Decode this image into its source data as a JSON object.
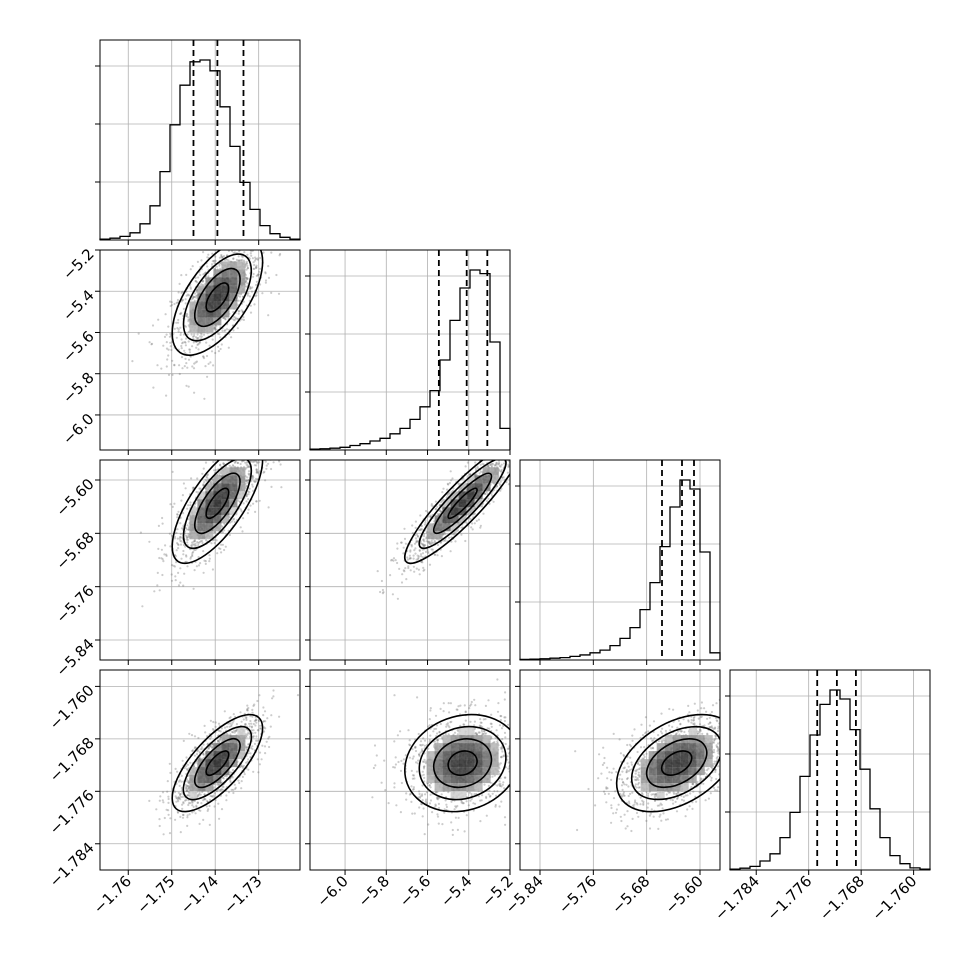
{
  "chart_data": {
    "type": "corner",
    "grid": true,
    "parameters": [
      {
        "range": [
          -1.7665,
          -1.7205
        ],
        "ticks": [
          -1.76,
          -1.75,
          -1.74,
          -1.73
        ],
        "tick_labels": [
          "−1.76",
          "−1.75",
          "−1.74",
          "−1.73"
        ],
        "quantiles": [
          -1.745,
          -1.7395,
          -1.7335
        ],
        "hist": [
          0.005,
          0.01,
          0.02,
          0.04,
          0.09,
          0.19,
          0.38,
          0.64,
          0.86,
          0.99,
          1.0,
          0.94,
          0.74,
          0.52,
          0.32,
          0.17,
          0.08,
          0.035,
          0.015,
          0.005
        ],
        "mean": -1.7395,
        "sd": 0.0052
      },
      {
        "range": [
          -6.17,
          -5.2
        ],
        "ticks": [
          -6.0,
          -5.8,
          -5.6,
          -5.4,
          -5.2
        ],
        "tick_labels": [
          "−6.0",
          "−5.8",
          "−5.6",
          "−5.4",
          "−5.2"
        ],
        "quantiles": [
          -5.545,
          -5.41,
          -5.31
        ],
        "hist": [
          0.005,
          0.007,
          0.01,
          0.015,
          0.025,
          0.035,
          0.05,
          0.065,
          0.09,
          0.12,
          0.17,
          0.24,
          0.33,
          0.5,
          0.72,
          0.9,
          1.0,
          0.98,
          0.6,
          0.12
        ],
        "mean": -5.43,
        "sd": 0.14
      },
      {
        "range": [
          -5.87,
          -5.57
        ],
        "ticks": [
          -5.84,
          -5.76,
          -5.68,
          -5.6
        ],
        "tick_labels": [
          "−5.84",
          "−5.76",
          "−5.68",
          "−5.60"
        ],
        "quantiles": [
          -5.657,
          -5.627,
          -5.609
        ],
        "hist": [
          0.003,
          0.005,
          0.007,
          0.01,
          0.013,
          0.02,
          0.028,
          0.04,
          0.055,
          0.08,
          0.12,
          0.18,
          0.28,
          0.43,
          0.63,
          0.85,
          1.0,
          0.95,
          0.6,
          0.04
        ],
        "mean": -5.635,
        "sd": 0.045
      },
      {
        "range": [
          -1.788,
          -1.7575
        ],
        "ticks": [
          -1.784,
          -1.776,
          -1.768,
          -1.76
        ],
        "tick_labels": [
          "−1.784",
          "−1.776",
          "−1.768",
          "−1.760"
        ],
        "quantiles": [
          -1.7747,
          -1.7717,
          -1.7688
        ],
        "hist": [
          0.005,
          0.01,
          0.02,
          0.05,
          0.09,
          0.18,
          0.32,
          0.52,
          0.75,
          0.92,
          1.0,
          0.95,
          0.78,
          0.56,
          0.34,
          0.18,
          0.08,
          0.035,
          0.012,
          0.005
        ],
        "mean": -1.7717,
        "sd": 0.0037
      }
    ],
    "pairs": [
      {
        "row": 1,
        "col": 0,
        "corr": 0.62
      },
      {
        "row": 2,
        "col": 0,
        "corr": 0.72
      },
      {
        "row": 2,
        "col": 1,
        "corr": 0.9
      },
      {
        "row": 3,
        "col": 0,
        "corr": 0.72
      },
      {
        "row": 3,
        "col": 1,
        "corr": 0.15
      },
      {
        "row": 3,
        "col": 2,
        "corr": 0.42
      }
    ]
  }
}
